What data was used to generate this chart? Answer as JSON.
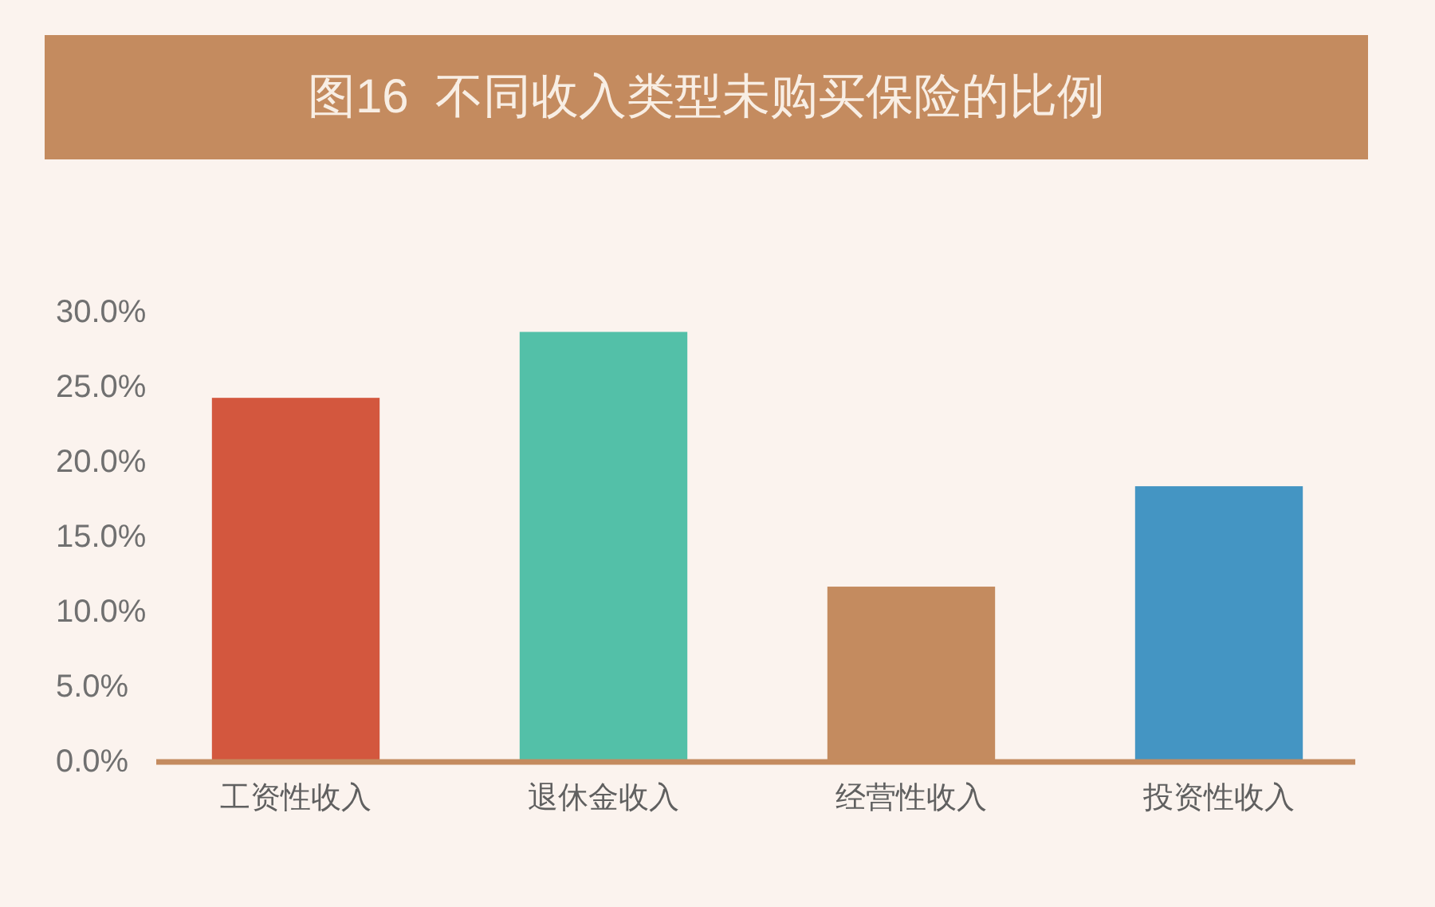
{
  "chart_data": {
    "type": "bar",
    "title": "图16  不同收入类型未购买保险的比例",
    "categories": [
      "工资性收入",
      "退休金收入",
      "经营性收入",
      "投资性收入"
    ],
    "values": [
      24.3,
      28.7,
      11.7,
      18.4
    ],
    "colors": [
      "#d3573e",
      "#53c0a8",
      "#c48b5f",
      "#4495c3"
    ],
    "ylim": [
      0,
      30
    ],
    "yticks": [
      {
        "value": 0,
        "label": "0.0%"
      },
      {
        "value": 5,
        "label": "5.0%"
      },
      {
        "value": 10,
        "label": "10.0%"
      },
      {
        "value": 15,
        "label": "15.0%"
      },
      {
        "value": 20,
        "label": "20.0%"
      },
      {
        "value": 25,
        "label": "25.0%"
      },
      {
        "value": 30,
        "label": "30.0%"
      }
    ]
  }
}
